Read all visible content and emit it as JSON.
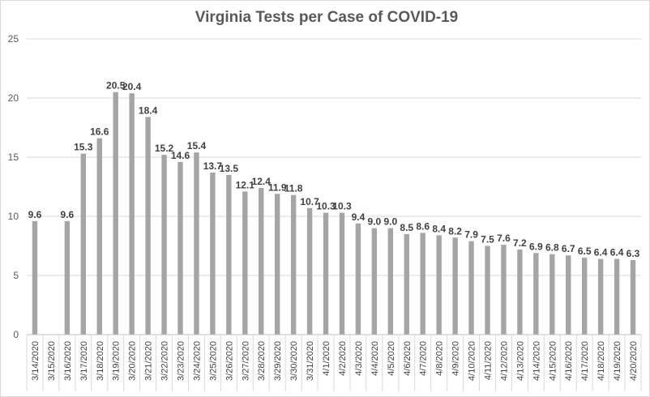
{
  "chart_data": {
    "type": "bar",
    "title": "Virginia Tests per Case of COVID-19",
    "xlabel": "",
    "ylabel": "",
    "ylim": [
      0,
      25
    ],
    "yticks": [
      0,
      5,
      10,
      15,
      20,
      25
    ],
    "grid": true,
    "legend": "none",
    "bar_color": "#a5a5a5",
    "grid_color": "#d9d9d9",
    "categories": [
      "3/14/2020",
      "3/15/2020",
      "3/16/2020",
      "3/17/2020",
      "3/18/2020",
      "3/19/2020",
      "3/20/2020",
      "3/21/2020",
      "3/22/2020",
      "3/23/2020",
      "3/24/2020",
      "3/25/2020",
      "3/26/2020",
      "3/27/2020",
      "3/28/2020",
      "3/29/2020",
      "3/30/2020",
      "3/31/2020",
      "4/1/2020",
      "4/2/2020",
      "4/3/2020",
      "4/4/2020",
      "4/5/2020",
      "4/6/2020",
      "4/7/2020",
      "4/8/2020",
      "4/9/2020",
      "4/10/2020",
      "4/11/2020",
      "4/12/2020",
      "4/13/2020",
      "4/14/2020",
      "4/15/2020",
      "4/16/2020",
      "4/17/2020",
      "4/18/2020",
      "4/19/2020",
      "4/20/2020"
    ],
    "values": [
      9.6,
      null,
      9.6,
      15.3,
      16.6,
      20.5,
      20.4,
      18.4,
      15.2,
      14.6,
      15.4,
      13.7,
      13.5,
      12.1,
      12.4,
      11.9,
      11.8,
      10.7,
      10.3,
      10.3,
      9.4,
      9.0,
      9.0,
      8.5,
      8.6,
      8.4,
      8.2,
      7.9,
      7.5,
      7.6,
      7.2,
      6.9,
      6.8,
      6.7,
      6.5,
      6.4,
      6.4,
      6.3
    ],
    "data_labels": [
      "9.6",
      "",
      "9.6",
      "15.3",
      "16.6",
      "20.5",
      "20.4",
      "18.4",
      "15.2",
      "14.6",
      "15.4",
      "13.7",
      "13.5",
      "12.1",
      "12.4",
      "11.9",
      "11.8",
      "10.7",
      "10.3",
      "10.3",
      "9.4",
      "9.0",
      "9.0",
      "8.5",
      "8.6",
      "8.4",
      "8.2",
      "7.9",
      "7.5",
      "7.6",
      "7.2",
      "6.9",
      "6.8",
      "6.7",
      "6.5",
      "6.4",
      "6.4",
      "6.3"
    ]
  }
}
